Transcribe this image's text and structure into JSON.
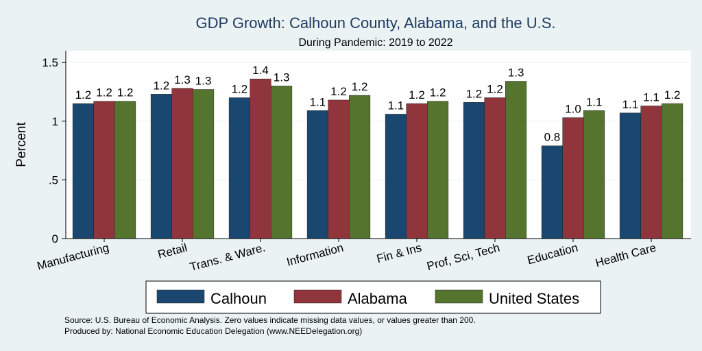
{
  "chart_data": {
    "type": "bar",
    "title": "GDP Growth: Calhoun County, Alabama, and the U.S.",
    "subtitle": "During Pandemic: 2019 to 2022",
    "ylabel": "Percent",
    "xlabel": "",
    "ylim": [
      0,
      1.6
    ],
    "yticks": [
      0,
      0.5,
      1,
      1.5
    ],
    "ytick_labels": [
      "0",
      ".5",
      "1",
      "1.5"
    ],
    "grid": true,
    "legend_position": "bottom",
    "categories": [
      "Manufacturing",
      "Retail",
      "Trans. & Ware.",
      "Information",
      "Fin & Ins",
      "Prof, Sci, Tech",
      "Education",
      "Health Care"
    ],
    "series": [
      {
        "name": "Calhoun",
        "color": "#1a476f",
        "values": [
          1.15,
          1.23,
          1.2,
          1.09,
          1.06,
          1.16,
          0.79,
          1.07
        ],
        "labels": [
          "1.2",
          "1.2",
          "1.2",
          "1.1",
          "1.1",
          "1.2",
          "0.8",
          "1.1"
        ]
      },
      {
        "name": "Alabama",
        "color": "#90353b",
        "values": [
          1.17,
          1.28,
          1.36,
          1.18,
          1.15,
          1.2,
          1.03,
          1.13
        ],
        "labels": [
          "1.2",
          "1.3",
          "1.4",
          "1.2",
          "1.2",
          "1.2",
          "1.0",
          "1.1"
        ]
      },
      {
        "name": "United States",
        "color": "#55752f",
        "values": [
          1.17,
          1.27,
          1.3,
          1.22,
          1.17,
          1.34,
          1.09,
          1.15
        ],
        "labels": [
          "1.2",
          "1.3",
          "1.3",
          "1.2",
          "1.2",
          "1.3",
          "1.1",
          "1.2"
        ]
      }
    ]
  },
  "footer": {
    "source": "Source: U.S. Bureau of Economic Analysis. Zero values indicate missing data values, or values greater than 200.",
    "produced_by": "Produced by: National Economic Education Delegation (www.NEEDelegation.org)"
  },
  "colors": {
    "background": "#eaf2f3",
    "plot_background": "#ffffff",
    "title": "#1e3a5f"
  }
}
